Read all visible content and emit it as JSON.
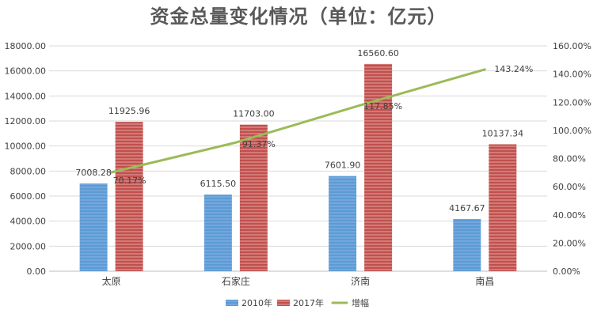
{
  "chart_data": {
    "type": "bar",
    "title": "资金总量变化情况（单位：亿元）",
    "categories": [
      "太原",
      "石家庄",
      "济南",
      "南昌"
    ],
    "series": [
      {
        "name": "2010年",
        "type": "bar",
        "axis": "left",
        "values": [
          7008.28,
          6115.5,
          7601.9,
          4167.67
        ],
        "labels": [
          "7008.28",
          "6115.50",
          "7601.90",
          "4167.67"
        ],
        "color": "#4F81BD"
      },
      {
        "name": "2017年",
        "type": "bar",
        "axis": "left",
        "values": [
          11925.96,
          11703.0,
          16560.6,
          10137.34
        ],
        "labels": [
          "11925.96",
          "11703.00",
          "16560.60",
          "10137.34"
        ],
        "color": "#C0504D"
      },
      {
        "name": "增幅",
        "type": "line",
        "axis": "right",
        "values": [
          70.17,
          91.37,
          117.85,
          143.24
        ],
        "labels": [
          "70.17%",
          "91.37%",
          "117.85%",
          "143.24%"
        ],
        "color": "#9BBB59"
      }
    ],
    "yaxis_left": {
      "min": 0,
      "max": 18000,
      "step": 2000,
      "tick_labels": [
        "0.00",
        "2000.00",
        "4000.00",
        "6000.00",
        "8000.00",
        "10000.00",
        "12000.00",
        "14000.00",
        "16000.00",
        "18000.00"
      ]
    },
    "yaxis_right": {
      "min": 0,
      "max": 160,
      "step": 20,
      "tick_labels": [
        "0.00%",
        "20.00%",
        "40.00%",
        "60.00%",
        "80.00%",
        "100.00%",
        "120.00%",
        "140.00%",
        "160.00%"
      ]
    },
    "xlabel": "",
    "ylabel": "",
    "grid": true,
    "legend": "bottom"
  }
}
